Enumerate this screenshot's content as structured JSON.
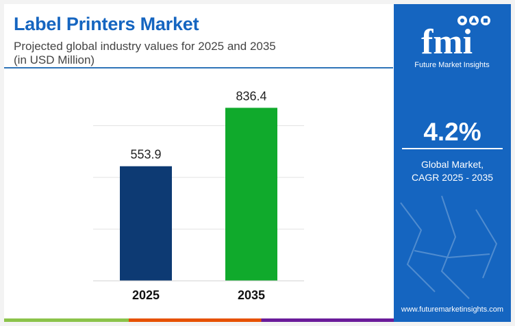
{
  "header": {
    "title": "Label Printers Market",
    "subtitle_line1": "Projected global industry values for 2025 and 2035",
    "subtitle_line2": "(in USD Million)"
  },
  "chart_data": {
    "type": "bar",
    "title": "Label Printers Market",
    "categories": [
      "2025",
      "2035"
    ],
    "values": [
      553.9,
      836.4
    ],
    "value_labels": [
      "553.9",
      "836.4"
    ],
    "colors": [
      "#0d3a73",
      "#10aa2c"
    ],
    "ylim": [
      0,
      1000
    ],
    "grid": true,
    "legend": "none",
    "xlabel": "",
    "ylabel": ""
  },
  "sidebar": {
    "brand_letters": "fmi",
    "brand_name": "Future Market Insights",
    "cagr_value": "4.2%",
    "cagr_label_line1": "Global Market,",
    "cagr_label_line2": "CAGR 2025 - 2035",
    "website": "www.futuremarketinsights.com",
    "color": "#1565c0"
  }
}
